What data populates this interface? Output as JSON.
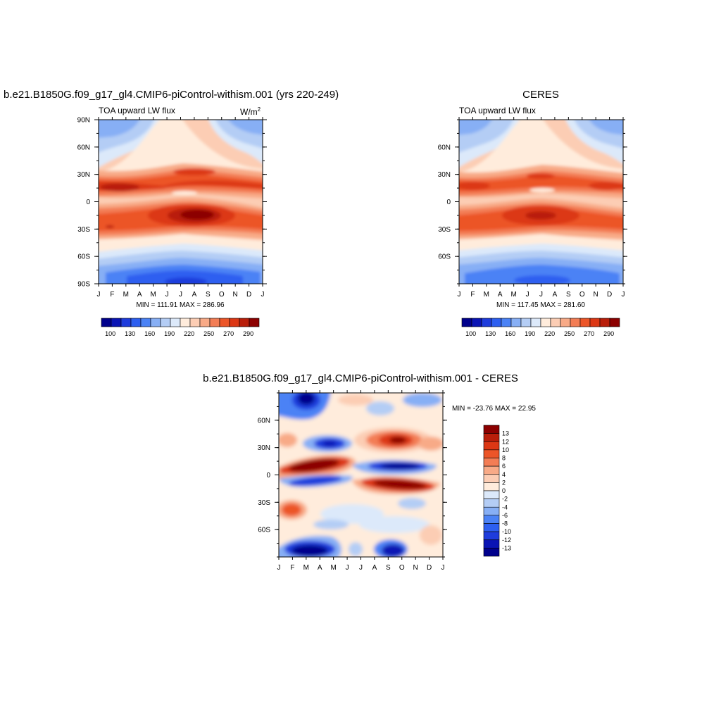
{
  "colors": {
    "abs_palette": [
      "#00008c",
      "#0a14b4",
      "#1e3cdc",
      "#2d5ff0",
      "#4b82f5",
      "#87aff5",
      "#b4cdf5",
      "#dce9fa",
      "#ffecdc",
      "#fccdb4",
      "#f8aa87",
      "#f37d55",
      "#ec5528",
      "#dc3714",
      "#b91e0a",
      "#8c0000"
    ],
    "diff_palette": [
      "#00008c",
      "#0a14b4",
      "#1e3cdc",
      "#2d5ff0",
      "#4b82f5",
      "#87aff5",
      "#b4cdf5",
      "#dce9fa",
      "#ffecdc",
      "#fccdb4",
      "#f8aa87",
      "#f37d55",
      "#ec5528",
      "#dc3714",
      "#b91e0a",
      "#8c0000"
    ]
  },
  "panels": {
    "model": {
      "title": "b.e21.B1850G.f09_g17_gl4.CMIP6-piControl-withism.001 (yrs 220-249)",
      "left_label": "TOA upward LW flux",
      "units_base": "W/m",
      "units_exp": "2",
      "minmax": "MIN = 111.91  MAX = 286.96"
    },
    "obs": {
      "title": "CERES",
      "left_label": "TOA upward LW flux",
      "minmax": "MIN = 117.45  MAX = 281.60"
    },
    "diff": {
      "title": "b.e21.B1850G.f09_g17_gl4.CMIP6-piControl-withism.001 - CERES",
      "minmax": "MIN = -23.76  MAX =  22.95"
    }
  },
  "chart_data": [
    {
      "type": "heatmap",
      "name_ref": "model",
      "x_ticks": [
        "J",
        "F",
        "M",
        "A",
        "M",
        "J",
        "J",
        "A",
        "S",
        "O",
        "N",
        "D",
        "J"
      ],
      "y_ticks": [
        "90N",
        "60N",
        "30N",
        "0",
        "30S",
        "60S",
        "90S"
      ],
      "y_values": [
        90,
        60,
        30,
        0,
        -30,
        -60,
        -90
      ],
      "ylim": [
        -90,
        90
      ],
      "colorbar_labels": [
        "100",
        "130",
        "160",
        "190",
        "220",
        "250",
        "270",
        "290"
      ],
      "data_min": 111.91,
      "data_max": 286.96
    },
    {
      "type": "heatmap",
      "name_ref": "obs",
      "x_ticks": [
        "J",
        "F",
        "M",
        "A",
        "M",
        "J",
        "J",
        "A",
        "S",
        "O",
        "N",
        "D",
        "J"
      ],
      "y_ticks": [
        "60N",
        "30N",
        "0",
        "30S",
        "60S"
      ],
      "y_values": [
        60,
        30,
        0,
        -30,
        -60
      ],
      "ylim": [
        -90,
        90
      ],
      "colorbar_labels": [
        "100",
        "130",
        "160",
        "190",
        "220",
        "250",
        "270",
        "290"
      ],
      "data_min": 117.45,
      "data_max": 281.6
    },
    {
      "type": "heatmap",
      "name_ref": "diff",
      "x_ticks": [
        "J",
        "F",
        "M",
        "A",
        "M",
        "J",
        "J",
        "A",
        "S",
        "O",
        "N",
        "D",
        "J"
      ],
      "y_ticks": [
        "60N",
        "30N",
        "0",
        "30S",
        "60S"
      ],
      "y_values": [
        60,
        30,
        0,
        -30,
        -60
      ],
      "ylim": [
        -90,
        90
      ],
      "colorbar_labels": [
        "13",
        "12",
        "10",
        "8",
        "6",
        "4",
        "2",
        "0",
        "-2",
        "-4",
        "-6",
        "-8",
        "-10",
        "-12",
        "-13"
      ],
      "data_min": -23.76,
      "data_max": 22.95
    }
  ]
}
